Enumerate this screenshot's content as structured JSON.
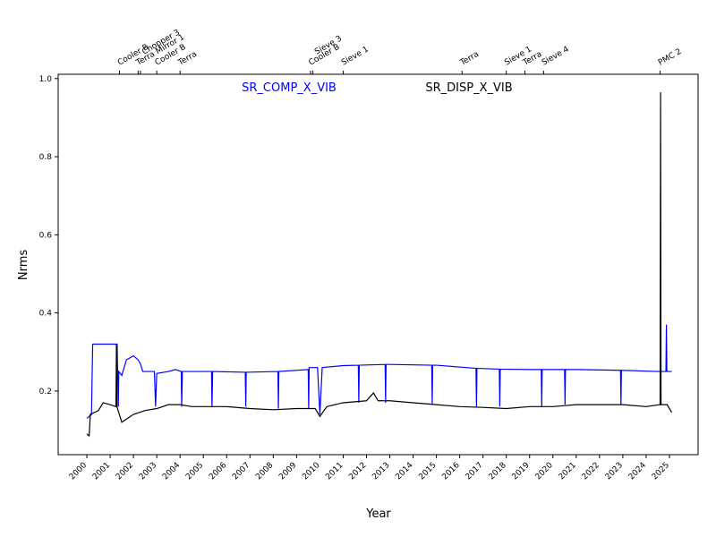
{
  "chart_data": {
    "type": "line",
    "xlabel": "Year",
    "ylabel": "Nrms",
    "xlim": [
      1998.77,
      2026.23
    ],
    "ylim": [
      0.037,
      1.011
    ],
    "xticks": [
      2000,
      2001,
      2002,
      2003,
      2004,
      2005,
      2006,
      2007,
      2008,
      2009,
      2010,
      2011,
      2012,
      2013,
      2014,
      2015,
      2016,
      2017,
      2018,
      2019,
      2020,
      2021,
      2022,
      2023,
      2024,
      2025
    ],
    "yticks": [
      0.2,
      0.4,
      0.6,
      0.8,
      {
        "value": 1,
        "label": "1.0"
      }
    ],
    "events": [
      {
        "label": "Cooler B",
        "x": 2001.4
      },
      {
        "label": "Terra Mirror 1",
        "x": 2002.2
      },
      {
        "label": "Chopper 3",
        "x": 2002.3
      },
      {
        "label": "Cooler B",
        "x": 2003.0
      },
      {
        "label": "Terra",
        "x": 2004.0
      },
      {
        "label": "Cooler B",
        "x": 2009.6
      },
      {
        "label": "Sieve 3",
        "x": 2009.7
      },
      {
        "label": "Sieve 1",
        "x": 2011.0
      },
      {
        "label": "Terra",
        "x": 2016.1
      },
      {
        "label": "Sieve 1",
        "x": 2018.0
      },
      {
        "label": "Terra",
        "x": 2018.8
      },
      {
        "label": "Sieve 4",
        "x": 2019.6
      },
      {
        "label": "PMC 2",
        "x": 2024.6
      }
    ],
    "series": [
      {
        "name": "SR_COMP_X_VIB",
        "color": "#0000ff",
        "x": [
          2000.0,
          2000.2,
          2000.25,
          2000.5,
          2001.0,
          2001.3,
          2001.35,
          2001.37,
          2001.5,
          2001.7,
          2002.0,
          2002.2,
          2002.3,
          2002.4,
          2002.9,
          2002.95,
          2003.0,
          2003.5,
          2003.8,
          2004.05,
          2004.07,
          2004.1,
          2005.35,
          2005.37,
          2005.4,
          2006.8,
          2006.82,
          2006.84,
          2008.2,
          2008.22,
          2008.24,
          2009.5,
          2009.52,
          2009.54,
          2009.9,
          2010.0,
          2010.1,
          2011.0,
          2011.65,
          2011.67,
          2011.69,
          2012.8,
          2012.82,
          2012.84,
          2013.0,
          2014.8,
          2014.82,
          2014.84,
          2015.0,
          2016.7,
          2016.72,
          2016.74,
          2017.7,
          2017.72,
          2017.74,
          2019.0,
          2019.5,
          2019.52,
          2019.54,
          2020.5,
          2020.52,
          2020.54,
          2021.0,
          2022.9,
          2022.92,
          2022.94,
          2024.5,
          2024.85,
          2024.87,
          2024.89,
          2025.1
        ],
        "values": [
          0.13,
          0.14,
          0.32,
          0.32,
          0.32,
          0.32,
          0.16,
          0.25,
          0.24,
          0.28,
          0.29,
          0.28,
          0.27,
          0.25,
          0.25,
          0.16,
          0.245,
          0.25,
          0.255,
          0.25,
          0.16,
          0.25,
          0.25,
          0.16,
          0.25,
          0.248,
          0.16,
          0.248,
          0.25,
          0.155,
          0.25,
          0.255,
          0.155,
          0.26,
          0.26,
          0.14,
          0.26,
          0.265,
          0.266,
          0.17,
          0.266,
          0.268,
          0.17,
          0.268,
          0.268,
          0.266,
          0.165,
          0.266,
          0.266,
          0.258,
          0.16,
          0.258,
          0.256,
          0.16,
          0.256,
          0.255,
          0.255,
          0.16,
          0.255,
          0.255,
          0.165,
          0.255,
          0.255,
          0.253,
          0.165,
          0.253,
          0.25,
          0.25,
          0.37,
          0.25,
          0.25
        ]
      },
      {
        "name": "SR_DISP_X_VIB",
        "color": "#000000",
        "x": [
          2000.0,
          2000.1,
          2000.15,
          2000.5,
          2000.7,
          2001.0,
          2001.25,
          2001.27,
          2001.29,
          2001.5,
          2002.0,
          2002.5,
          2003.0,
          2003.5,
          2004.0,
          2004.5,
          2005.0,
          2006.0,
          2007.0,
          2008.0,
          2009.0,
          2009.8,
          2010.0,
          2010.3,
          2011.0,
          2012.0,
          2012.3,
          2012.5,
          2013.0,
          2014.0,
          2015.0,
          2016.0,
          2017.0,
          2018.0,
          2019.0,
          2020.0,
          2021.0,
          2022.0,
          2023.0,
          2024.0,
          2024.6,
          2024.62,
          2024.64,
          2024.9,
          2025.1
        ],
        "values": [
          0.09,
          0.085,
          0.14,
          0.15,
          0.17,
          0.165,
          0.16,
          0.32,
          0.16,
          0.12,
          0.14,
          0.15,
          0.155,
          0.165,
          0.165,
          0.16,
          0.16,
          0.16,
          0.155,
          0.152,
          0.155,
          0.155,
          0.135,
          0.16,
          0.17,
          0.175,
          0.195,
          0.175,
          0.175,
          0.17,
          0.165,
          0.16,
          0.158,
          0.155,
          0.16,
          0.16,
          0.165,
          0.165,
          0.165,
          0.16,
          0.165,
          0.965,
          0.165,
          0.165,
          0.145
        ]
      }
    ]
  }
}
